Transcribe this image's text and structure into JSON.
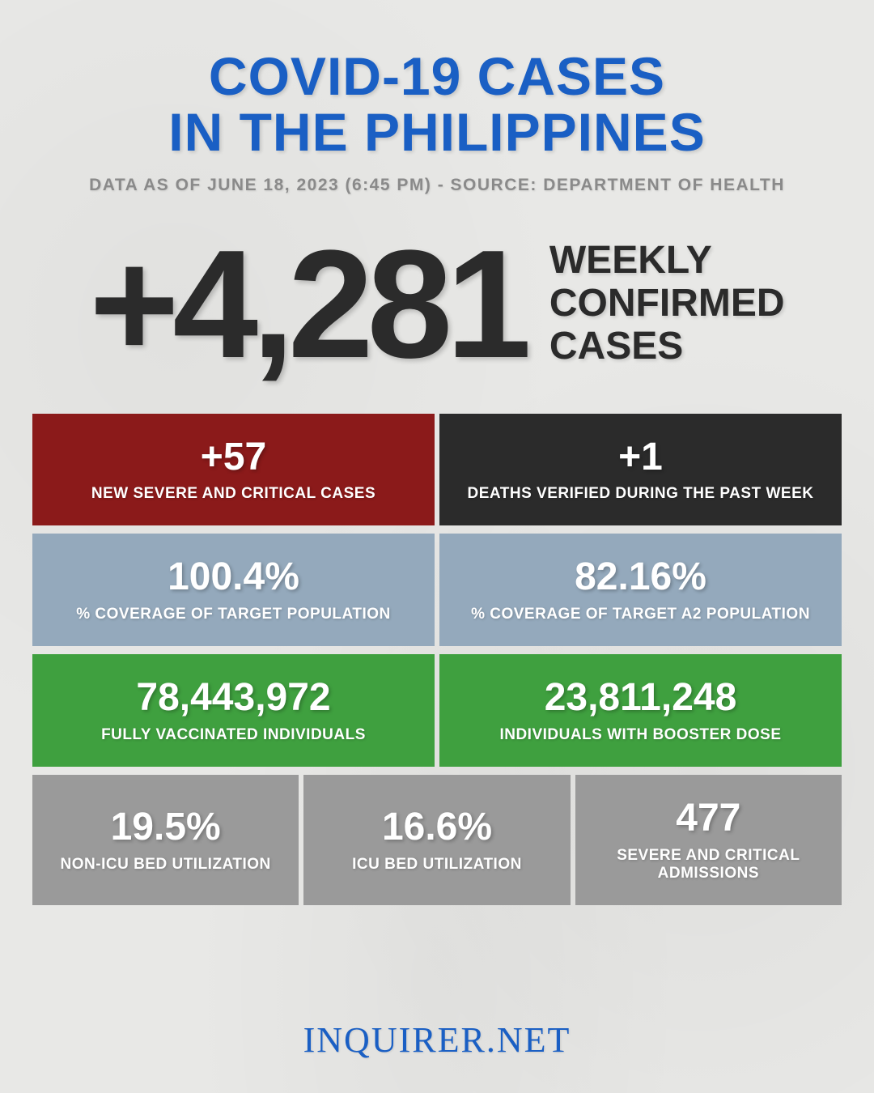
{
  "header": {
    "title_line1": "COVID-19 CASES",
    "title_line2": "IN THE PHILIPPINES",
    "subtitle": "DATA AS OF JUNE 18, 2023 (6:45 PM) - SOURCE: DEPARTMENT OF HEALTH"
  },
  "hero": {
    "value": "+4,281",
    "label_line1": "WEEKLY",
    "label_line2": "CONFIRMED",
    "label_line3": "CASES"
  },
  "rows": [
    {
      "cells": [
        {
          "value": "+57",
          "label": "NEW SEVERE AND CRITICAL CASES",
          "bg": "#8b1a1a"
        },
        {
          "value": "+1",
          "label": "DEATHS VERIFIED DURING THE PAST WEEK",
          "bg": "#2b2b2b"
        }
      ]
    },
    {
      "cells": [
        {
          "value": "100.4%",
          "label": "% COVERAGE OF TARGET POPULATION",
          "bg": "#94a9bc"
        },
        {
          "value": "82.16%",
          "label": "% COVERAGE OF TARGET A2 POPULATION",
          "bg": "#94a9bc"
        }
      ]
    },
    {
      "cells": [
        {
          "value": "78,443,972",
          "label": "FULLY VACCINATED INDIVIDUALS",
          "bg": "#3fa03f"
        },
        {
          "value": "23,811,248",
          "label": "INDIVIDUALS WITH BOOSTER DOSE",
          "bg": "#3fa03f"
        }
      ]
    },
    {
      "cells": [
        {
          "value": "19.5%",
          "label": "NON-ICU BED UTILIZATION",
          "bg": "#9a9a9a"
        },
        {
          "value": "16.6%",
          "label": "ICU BED UTILIZATION",
          "bg": "#9a9a9a"
        },
        {
          "value": "477",
          "label": "SEVERE AND CRITICAL ADMISSIONS",
          "bg": "#9a9a9a"
        }
      ]
    }
  ],
  "footer": {
    "brand": "INQUIRER.NET"
  },
  "styling": {
    "background_color": "#e8e8e6",
    "title_color": "#1a5fc4",
    "subtitle_color": "#8a8a8a",
    "hero_text_color": "#2b2b2b",
    "cell_text_color": "#ffffff",
    "footer_color": "#1a5fc4",
    "title_fontsize": 66,
    "subtitle_fontsize": 21,
    "hero_value_fontsize": 190,
    "hero_label_fontsize": 48,
    "cell_value_fontsize": 48,
    "cell_label_fontsize": 19,
    "footer_fontsize": 44,
    "row_gap": 10,
    "cell_gap": 6
  }
}
